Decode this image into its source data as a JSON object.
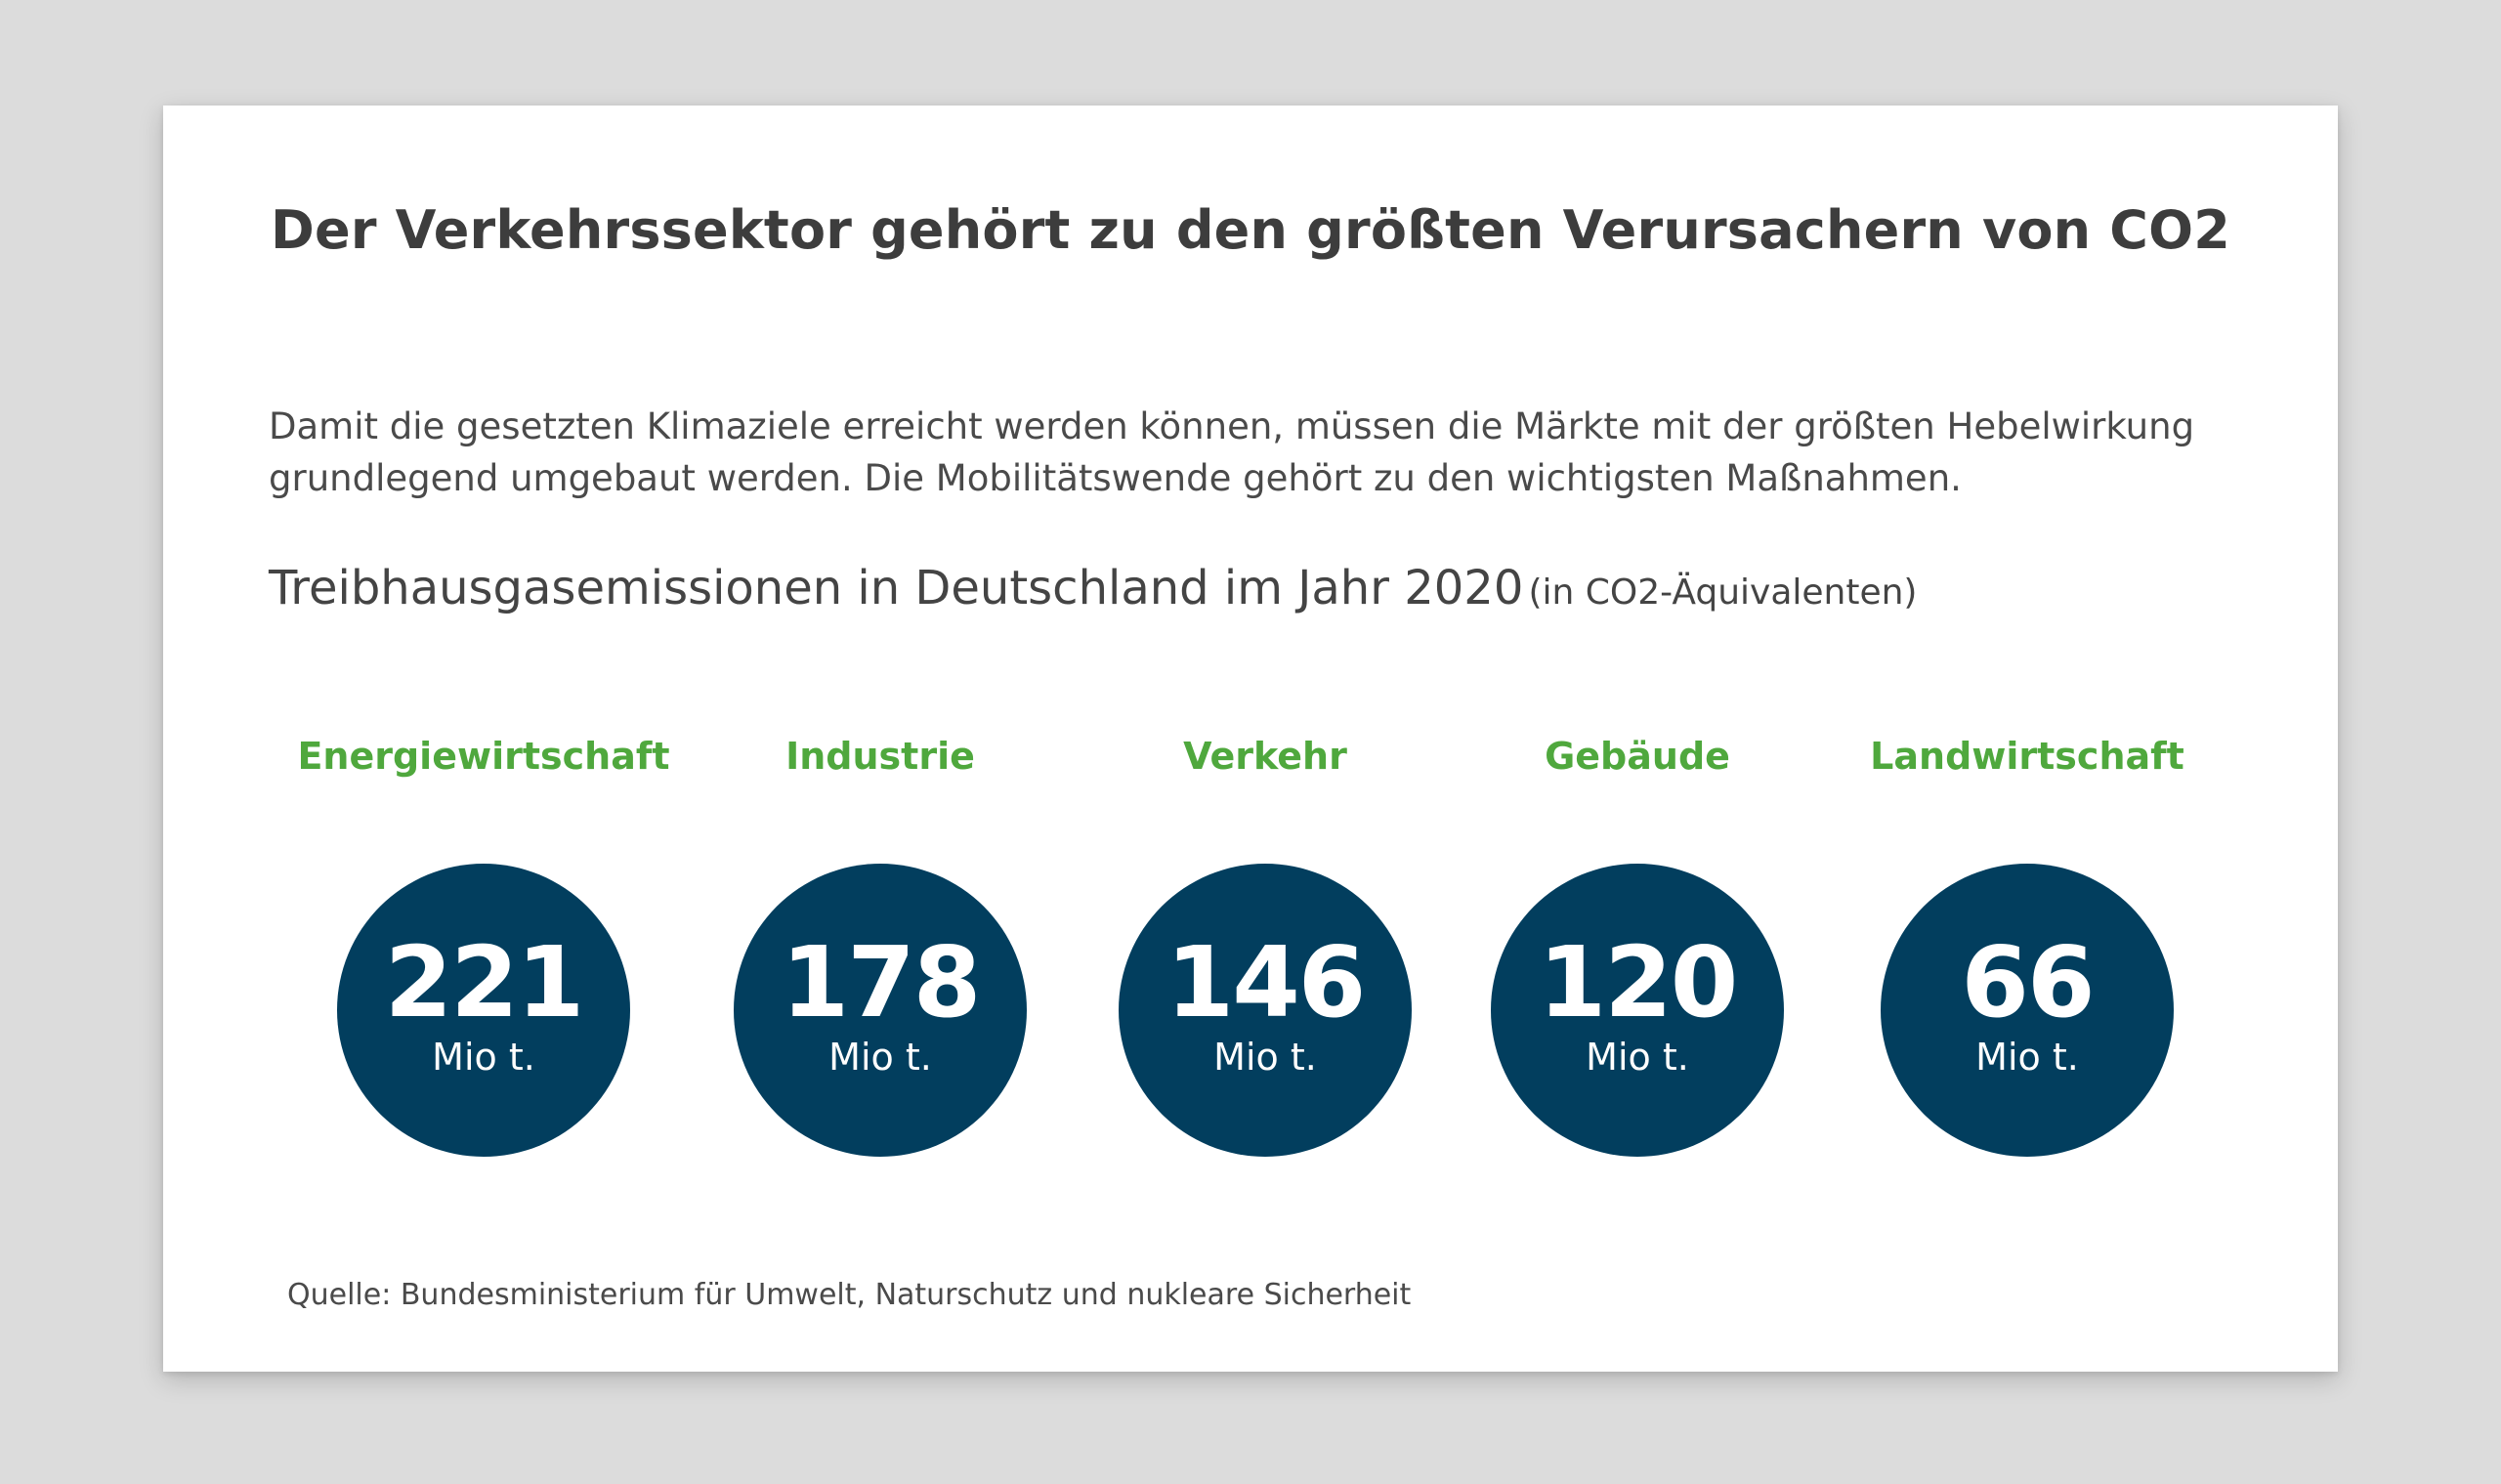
{
  "headline": "Der Verkehrssektor gehört zu den größten Verursachern von CO2",
  "intro": "Damit die gesetzten Klimaziele erreicht werden können, müssen die Märkte mit der größten Hebelwirkung grundlegend umgebaut werden. Die Mobilitätswende gehört zu den wichtigsten Maßnahmen.",
  "subtitle": {
    "main": "Treibhausgasemissionen in Deutschland im Jahr 2020",
    "unit": "(in CO2-Äquivalenten)"
  },
  "colors": {
    "label_green": "#4fa83d",
    "circle_navy": "#023e5e"
  },
  "sectors": [
    {
      "label": "Energiewirtschaft",
      "value": "221",
      "unit": "Mio t."
    },
    {
      "label": "Industrie",
      "value": "178",
      "unit": "Mio t."
    },
    {
      "label": "Verkehr",
      "value": "146",
      "unit": "Mio t."
    },
    {
      "label": "Gebäude",
      "value": "120",
      "unit": "Mio t."
    },
    {
      "label": "Landwirtschaft",
      "value": "66",
      "unit": "Mio t."
    }
  ],
  "source": "Quelle: Bundesministerium für Umwelt, Naturschutz und nukleare Sicherheit"
}
